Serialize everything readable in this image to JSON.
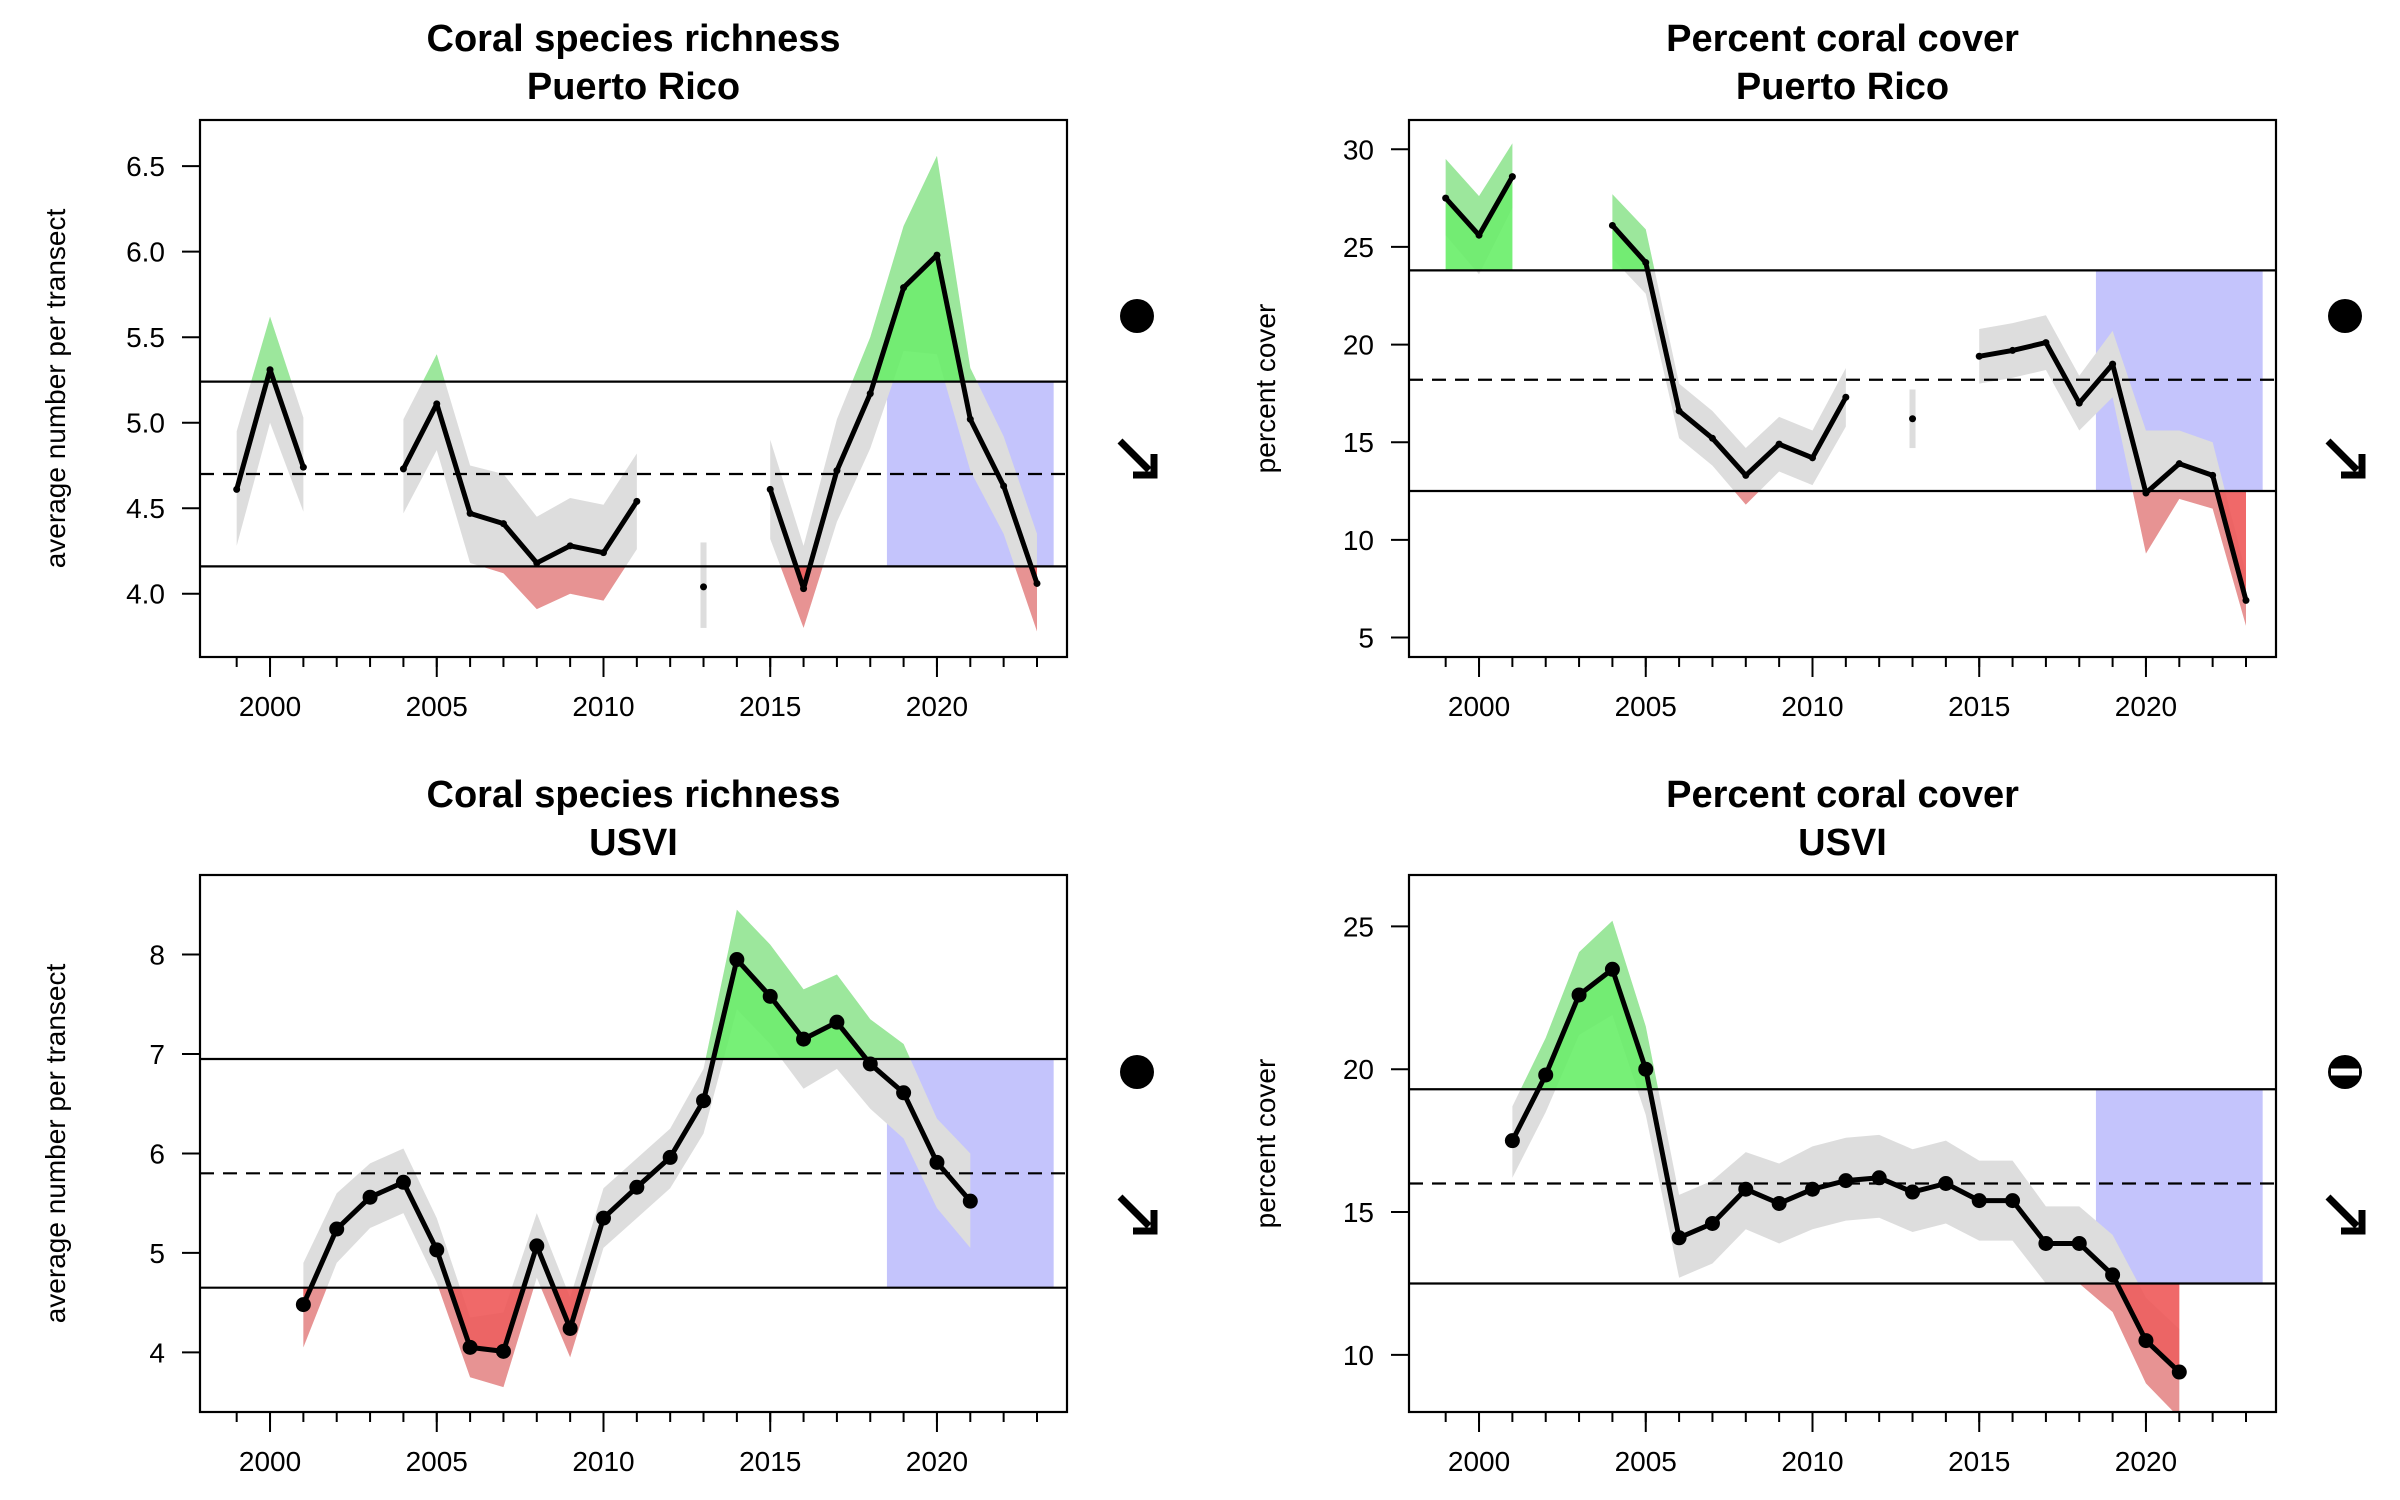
{
  "chart_data": [
    {
      "type": "line",
      "title_lines": [
        "Coral species richness",
        "Puerto Rico"
      ],
      "ylabel": "average number per transect",
      "xlim": [
        1997.9,
        2023.9
      ],
      "ylim": [
        3.63,
        6.77
      ],
      "x_ticks": [
        2000,
        2005,
        2010,
        2015,
        2020
      ],
      "y_ticks": [
        "4.0",
        "4.5",
        "5.0",
        "5.5",
        "6.0",
        "6.5"
      ],
      "upper_threshold": 5.24,
      "mean_line": 4.7,
      "lower_threshold": 4.16,
      "recent_window": [
        2018.5,
        2023.5
      ],
      "point_style": "small",
      "series": [
        {
          "points": [
            {
              "x": 1999,
              "y": 4.61,
              "lo": 4.28,
              "hi": 4.95
            },
            {
              "x": 2000,
              "y": 5.31,
              "lo": 5.0,
              "hi": 5.62
            },
            {
              "x": 2001,
              "y": 4.74,
              "lo": 4.48,
              "hi": 5.03
            },
            {
              "x": 2002,
              "y": null
            },
            {
              "x": 2003,
              "y": null
            },
            {
              "x": 2004,
              "y": 4.73,
              "lo": 4.47,
              "hi": 5.02
            },
            {
              "x": 2005,
              "y": 5.11,
              "lo": 4.84,
              "hi": 5.4
            },
            {
              "x": 2006,
              "y": 4.47,
              "lo": 4.18,
              "hi": 4.75
            },
            {
              "x": 2007,
              "y": 4.41,
              "lo": 4.12,
              "hi": 4.7
            },
            {
              "x": 2008,
              "y": 4.18,
              "lo": 3.91,
              "hi": 4.45
            },
            {
              "x": 2009,
              "y": 4.28,
              "lo": 4.0,
              "hi": 4.56
            },
            {
              "x": 2010,
              "y": 4.24,
              "lo": 3.96,
              "hi": 4.52
            },
            {
              "x": 2011,
              "y": 4.54,
              "lo": 4.26,
              "hi": 4.82
            },
            {
              "x": 2012,
              "y": null
            },
            {
              "x": 2013,
              "y": 4.04,
              "lo": 3.8,
              "hi": 4.3
            },
            {
              "x": 2014,
              "y": null
            },
            {
              "x": 2015,
              "y": 4.61,
              "lo": 4.32,
              "hi": 4.9
            },
            {
              "x": 2016,
              "y": 4.03,
              "lo": 3.8,
              "hi": 4.28
            },
            {
              "x": 2017,
              "y": 4.72,
              "lo": 4.42,
              "hi": 5.02
            },
            {
              "x": 2018,
              "y": 5.17,
              "lo": 4.85,
              "hi": 5.5
            },
            {
              "x": 2019,
              "y": 5.79,
              "lo": 5.42,
              "hi": 6.15
            },
            {
              "x": 2020,
              "y": 5.98,
              "lo": 5.4,
              "hi": 6.56
            },
            {
              "x": 2021,
              "y": 5.02,
              "lo": 4.72,
              "hi": 5.32
            },
            {
              "x": 2022,
              "y": 4.63,
              "lo": 4.35,
              "hi": 4.92
            },
            {
              "x": 2023,
              "y": 4.06,
              "lo": 3.78,
              "hi": 4.35
            }
          ]
        }
      ],
      "status_symbol": "filled-circle",
      "trend_symbol": "arrow-down-right"
    },
    {
      "type": "line",
      "title_lines": [
        "Percent coral cover",
        "Puerto Rico"
      ],
      "ylabel": "percent cover",
      "xlim": [
        1997.9,
        2023.9
      ],
      "ylim": [
        4.0,
        31.5
      ],
      "x_ticks": [
        2000,
        2005,
        2010,
        2015,
        2020
      ],
      "y_ticks": [
        "5",
        "10",
        "15",
        "20",
        "25",
        "30"
      ],
      "upper_threshold": 23.8,
      "mean_line": 18.2,
      "lower_threshold": 12.5,
      "recent_window": [
        2018.5,
        2023.5
      ],
      "point_style": "small",
      "series": [
        {
          "points": [
            {
              "x": 1999,
              "y": 27.5,
              "lo": 25.6,
              "hi": 29.5
            },
            {
              "x": 2000,
              "y": 25.6,
              "lo": 23.6,
              "hi": 27.6
            },
            {
              "x": 2001,
              "y": 28.6,
              "lo": 27.0,
              "hi": 30.3
            },
            {
              "x": 2002,
              "y": null
            },
            {
              "x": 2003,
              "y": null
            },
            {
              "x": 2004,
              "y": 26.1,
              "lo": 24.4,
              "hi": 27.7
            },
            {
              "x": 2005,
              "y": 24.2,
              "lo": 22.6,
              "hi": 25.9
            },
            {
              "x": 2006,
              "y": 16.6,
              "lo": 15.2,
              "hi": 18.0
            },
            {
              "x": 2007,
              "y": 15.2,
              "lo": 13.8,
              "hi": 16.6
            },
            {
              "x": 2008,
              "y": 13.3,
              "lo": 11.8,
              "hi": 14.7
            },
            {
              "x": 2009,
              "y": 14.9,
              "lo": 13.5,
              "hi": 16.3
            },
            {
              "x": 2010,
              "y": 14.2,
              "lo": 12.8,
              "hi": 15.6
            },
            {
              "x": 2011,
              "y": 17.3,
              "lo": 15.8,
              "hi": 18.8
            },
            {
              "x": 2012,
              "y": null
            },
            {
              "x": 2013,
              "y": 16.2,
              "lo": 14.7,
              "hi": 17.7
            },
            {
              "x": 2014,
              "y": null
            },
            {
              "x": 2015,
              "y": 19.4,
              "lo": 18.0,
              "hi": 20.8
            },
            {
              "x": 2016,
              "y": 19.7,
              "lo": 18.3,
              "hi": 21.1
            },
            {
              "x": 2017,
              "y": 20.1,
              "lo": 18.7,
              "hi": 21.5
            },
            {
              "x": 2018,
              "y": 17.0,
              "lo": 15.6,
              "hi": 18.4
            },
            {
              "x": 2019,
              "y": 19.0,
              "lo": 17.3,
              "hi": 20.7
            },
            {
              "x": 2020,
              "y": 12.4,
              "lo": 9.3,
              "hi": 15.6
            },
            {
              "x": 2021,
              "y": 13.9,
              "lo": 12.1,
              "hi": 15.6
            },
            {
              "x": 2022,
              "y": 13.3,
              "lo": 11.6,
              "hi": 15.0
            },
            {
              "x": 2023,
              "y": 6.9,
              "lo": 5.6,
              "hi": 8.3
            }
          ]
        }
      ],
      "status_symbol": "filled-circle",
      "trend_symbol": "arrow-down-right"
    },
    {
      "type": "line",
      "title_lines": [
        "Coral species richness",
        "USVI"
      ],
      "ylabel": "average number per transect",
      "xlim": [
        1997.9,
        2023.9
      ],
      "ylim": [
        3.4,
        8.8
      ],
      "x_ticks": [
        2000,
        2005,
        2010,
        2015,
        2020
      ],
      "y_ticks": [
        "4",
        "5",
        "6",
        "7",
        "8"
      ],
      "upper_threshold": 6.95,
      "mean_line": 5.8,
      "lower_threshold": 4.65,
      "recent_window": [
        2018.5,
        2023.5
      ],
      "point_style": "large",
      "series": [
        {
          "points": [
            {
              "x": 2001,
              "y": 4.48,
              "lo": 4.05,
              "hi": 4.9
            },
            {
              "x": 2002,
              "y": 5.24,
              "lo": 4.9,
              "hi": 5.6
            },
            {
              "x": 2003,
              "y": 5.56,
              "lo": 5.25,
              "hi": 5.9
            },
            {
              "x": 2004,
              "y": 5.71,
              "lo": 5.4,
              "hi": 6.05
            },
            {
              "x": 2005,
              "y": 5.03,
              "lo": 4.7,
              "hi": 5.35
            },
            {
              "x": 2006,
              "y": 4.05,
              "lo": 3.75,
              "hi": 4.35
            },
            {
              "x": 2007,
              "y": 4.01,
              "lo": 3.65,
              "hi": 4.4
            },
            {
              "x": 2008,
              "y": 5.07,
              "lo": 4.75,
              "hi": 5.4
            },
            {
              "x": 2009,
              "y": 4.24,
              "lo": 3.95,
              "hi": 4.55
            },
            {
              "x": 2010,
              "y": 5.35,
              "lo": 5.05,
              "hi": 5.65
            },
            {
              "x": 2011,
              "y": 5.66,
              "lo": 5.35,
              "hi": 5.95
            },
            {
              "x": 2012,
              "y": 5.96,
              "lo": 5.65,
              "hi": 6.25
            },
            {
              "x": 2013,
              "y": 6.53,
              "lo": 6.2,
              "hi": 6.85
            },
            {
              "x": 2014,
              "y": 7.95,
              "lo": 7.45,
              "hi": 8.45
            },
            {
              "x": 2015,
              "y": 7.58,
              "lo": 7.1,
              "hi": 8.1
            },
            {
              "x": 2016,
              "y": 7.15,
              "lo": 6.65,
              "hi": 7.65
            },
            {
              "x": 2017,
              "y": 7.32,
              "lo": 6.85,
              "hi": 7.8
            },
            {
              "x": 2018,
              "y": 6.9,
              "lo": 6.45,
              "hi": 7.35
            },
            {
              "x": 2019,
              "y": 6.61,
              "lo": 6.15,
              "hi": 7.1
            },
            {
              "x": 2020,
              "y": 5.91,
              "lo": 5.45,
              "hi": 6.35
            },
            {
              "x": 2021,
              "y": 5.52,
              "lo": 5.05,
              "hi": 6.0
            }
          ]
        }
      ],
      "status_symbol": "filled-circle",
      "trend_symbol": "arrow-down-right"
    },
    {
      "type": "line",
      "title_lines": [
        "Percent coral cover",
        "USVI"
      ],
      "ylabel": "percent cover",
      "xlim": [
        1997.9,
        2023.9
      ],
      "ylim": [
        8.0,
        26.8
      ],
      "x_ticks": [
        2000,
        2005,
        2010,
        2015,
        2020
      ],
      "y_ticks": [
        "10",
        "15",
        "20",
        "25"
      ],
      "upper_threshold": 19.3,
      "mean_line": 16.0,
      "lower_threshold": 12.5,
      "recent_window": [
        2018.5,
        2023.5
      ],
      "point_style": "large",
      "series": [
        {
          "points": [
            {
              "x": 2001,
              "y": 17.5,
              "lo": 16.2,
              "hi": 18.7
            },
            {
              "x": 2002,
              "y": 19.8,
              "lo": 18.5,
              "hi": 21.1
            },
            {
              "x": 2003,
              "y": 22.6,
              "lo": 21.2,
              "hi": 24.1
            },
            {
              "x": 2004,
              "y": 23.5,
              "lo": 21.9,
              "hi": 25.2
            },
            {
              "x": 2005,
              "y": 20.0,
              "lo": 18.4,
              "hi": 21.5
            },
            {
              "x": 2006,
              "y": 14.1,
              "lo": 12.7,
              "hi": 15.6
            },
            {
              "x": 2007,
              "y": 14.6,
              "lo": 13.2,
              "hi": 16.1
            },
            {
              "x": 2008,
              "y": 15.8,
              "lo": 14.4,
              "hi": 17.1
            },
            {
              "x": 2009,
              "y": 15.3,
              "lo": 13.9,
              "hi": 16.7
            },
            {
              "x": 2010,
              "y": 15.8,
              "lo": 14.4,
              "hi": 17.3
            },
            {
              "x": 2011,
              "y": 16.1,
              "lo": 14.7,
              "hi": 17.6
            },
            {
              "x": 2012,
              "y": 16.2,
              "lo": 14.8,
              "hi": 17.7
            },
            {
              "x": 2013,
              "y": 15.7,
              "lo": 14.3,
              "hi": 17.2
            },
            {
              "x": 2014,
              "y": 16.0,
              "lo": 14.6,
              "hi": 17.5
            },
            {
              "x": 2015,
              "y": 15.4,
              "lo": 14.0,
              "hi": 16.8
            },
            {
              "x": 2016,
              "y": 15.4,
              "lo": 14.0,
              "hi": 16.8
            },
            {
              "x": 2017,
              "y": 13.9,
              "lo": 12.5,
              "hi": 15.2
            },
            {
              "x": 2018,
              "y": 13.9,
              "lo": 12.5,
              "hi": 15.2
            },
            {
              "x": 2019,
              "y": 12.8,
              "lo": 11.5,
              "hi": 14.2
            },
            {
              "x": 2020,
              "y": 10.5,
              "lo": 9.0,
              "hi": 12.0
            },
            {
              "x": 2021,
              "y": 9.4,
              "lo": 7.8,
              "hi": 10.9
            }
          ]
        }
      ],
      "status_symbol": "half-filled-circle",
      "trend_symbol": "arrow-down-right"
    }
  ],
  "colors": {
    "ci_band": "#dddddd",
    "above_upper": "#66ee66",
    "below_lower": "#ee5555",
    "recent_window": "#c4c4fc",
    "line": "#000000"
  }
}
